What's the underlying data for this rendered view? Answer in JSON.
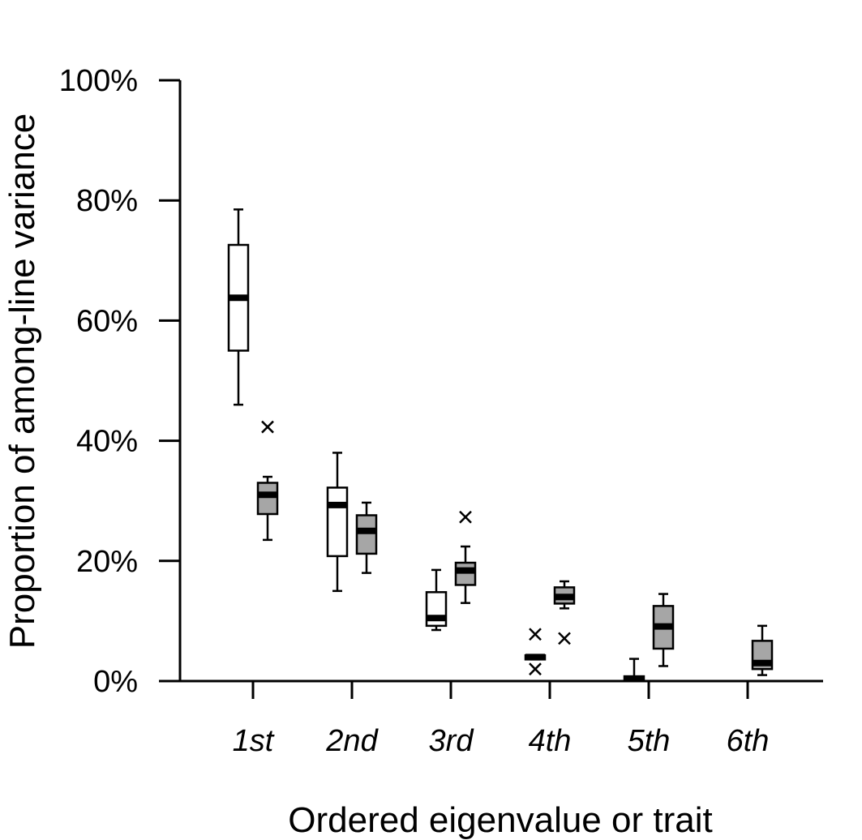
{
  "chart_data": {
    "type": "boxplot",
    "title": "",
    "xlabel": "Ordered eigenvalue or trait",
    "ylabel": "Proportion of among-line variance",
    "ylim": [
      0,
      100
    ],
    "yticks": [
      "0%",
      "20%",
      "40%",
      "60%",
      "80%",
      "100%"
    ],
    "ytick_values": [
      0,
      20,
      40,
      60,
      80,
      100
    ],
    "categories": [
      "1st",
      "2nd",
      "3rd",
      "4th",
      "5th",
      "6th"
    ],
    "grid": false,
    "legend": "none",
    "series": [
      {
        "fill": "#ffffff",
        "boxes": [
          {
            "category": "1st",
            "min": 46,
            "q1": 55,
            "median": 63.8,
            "q3": 72.6,
            "max": 78.5,
            "outliers": []
          },
          {
            "category": "2nd",
            "min": 15,
            "q1": 20.8,
            "median": 29.3,
            "q3": 32.2,
            "max": 38,
            "outliers": []
          },
          {
            "category": "3rd",
            "min": 8.5,
            "q1": 9.2,
            "median": 10.5,
            "q3": 14.8,
            "max": 18.5,
            "outliers": []
          },
          {
            "category": "4th",
            "min": 3.6,
            "q1": 3.6,
            "median": 4,
            "q3": 4.3,
            "max": 4.3,
            "outliers": [
              7.8,
              2
            ]
          },
          {
            "category": "5th",
            "min": 0,
            "q1": 0,
            "median": 0.4,
            "q3": 0.8,
            "max": 3.7,
            "outliers": []
          }
        ]
      },
      {
        "fill": "#a6a6a6",
        "boxes": [
          {
            "category": "1st",
            "min": 23.5,
            "q1": 27.8,
            "median": 31,
            "q3": 33,
            "max": 34,
            "outliers": [
              42.3
            ]
          },
          {
            "category": "2nd",
            "min": 18,
            "q1": 21.2,
            "median": 25,
            "q3": 27.6,
            "max": 29.7,
            "outliers": []
          },
          {
            "category": "3rd",
            "min": 13,
            "q1": 16,
            "median": 18.4,
            "q3": 19.7,
            "max": 22.4,
            "outliers": [
              27.3
            ]
          },
          {
            "category": "4th",
            "min": 12.1,
            "q1": 12.9,
            "median": 14,
            "q3": 15.6,
            "max": 16.6,
            "outliers": [
              7.1
            ]
          },
          {
            "category": "5th",
            "min": 2.5,
            "q1": 5.4,
            "median": 9.1,
            "q3": 12.5,
            "max": 14.5,
            "outliers": []
          },
          {
            "category": "6th",
            "min": 1,
            "q1": 2,
            "median": 3,
            "q3": 6.7,
            "max": 9.2,
            "outliers": []
          }
        ]
      }
    ]
  }
}
